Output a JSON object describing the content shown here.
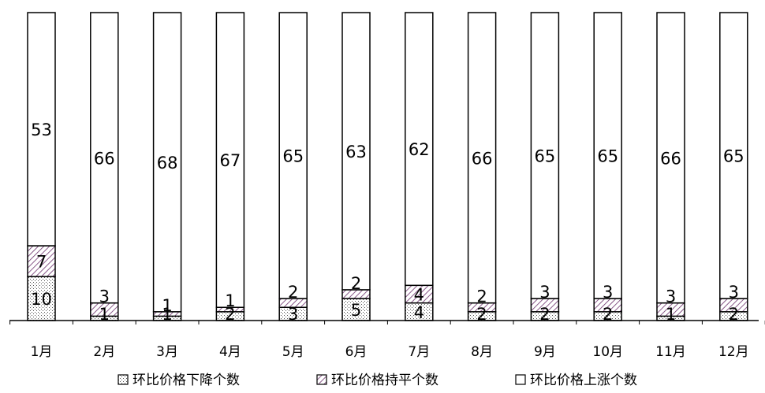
{
  "chart_data": {
    "type": "bar",
    "stacked": true,
    "categories": [
      "1月",
      "2月",
      "3月",
      "4月",
      "5月",
      "6月",
      "7月",
      "8月",
      "9月",
      "10月",
      "11月",
      "12月"
    ],
    "series": [
      {
        "name": "环比价格下降个数",
        "values": [
          10,
          1,
          1,
          2,
          3,
          5,
          4,
          2,
          2,
          2,
          1,
          2
        ],
        "pattern": "dots"
      },
      {
        "name": "环比价格持平个数",
        "values": [
          7,
          3,
          1,
          1,
          2,
          2,
          4,
          2,
          3,
          3,
          3,
          3
        ],
        "pattern": "diagonal"
      },
      {
        "name": "环比价格上涨个数",
        "values": [
          53,
          66,
          68,
          67,
          65,
          63,
          62,
          66,
          65,
          65,
          66,
          65
        ],
        "pattern": "blank"
      }
    ],
    "ylim": [
      0,
      70
    ],
    "legend_position": "bottom",
    "grid": false
  }
}
